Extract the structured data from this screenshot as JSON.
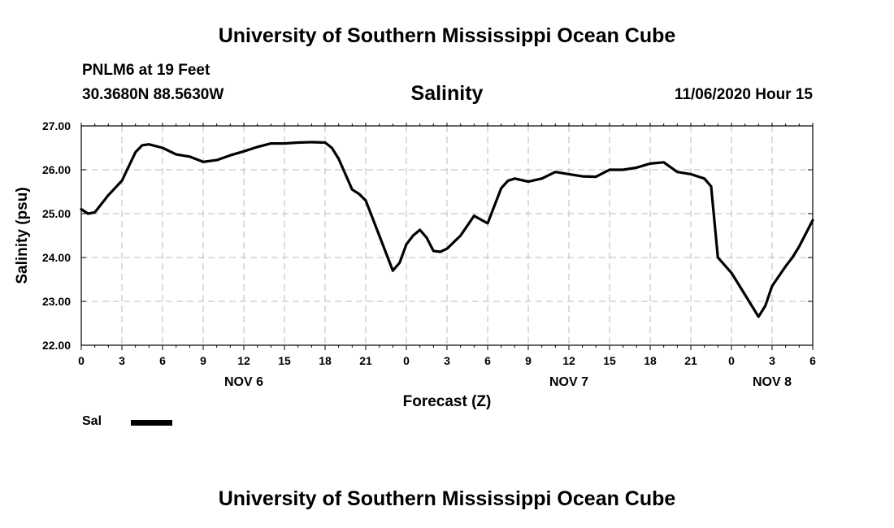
{
  "header": {
    "top_title": "University of Southern Mississippi Ocean Cube",
    "station": "PNLM6 at 19 Feet",
    "coords": "30.3680N 88.5630W",
    "issued": "11/06/2020 Hour 15"
  },
  "footer": {
    "bottom_title": "University of Southern Mississippi Ocean Cube"
  },
  "chart_data": {
    "type": "line",
    "title": "Salinity",
    "xlabel": "Forecast (Z)",
    "ylabel": "Salinity (psu)",
    "xlim": [
      0,
      54
    ],
    "ylim": [
      22.0,
      27.0
    ],
    "grid": true,
    "y_ticks": [
      "22.00",
      "23.00",
      "24.00",
      "25.00",
      "26.00",
      "27.00"
    ],
    "x_ticks": [
      "0",
      "3",
      "6",
      "9",
      "12",
      "15",
      "18",
      "21",
      "0",
      "3",
      "6",
      "9",
      "12",
      "15",
      "18",
      "21",
      "0",
      "3",
      "6"
    ],
    "date_labels": [
      {
        "label": "NOV 6",
        "at": 12
      },
      {
        "label": "NOV 7",
        "at": 36
      },
      {
        "label": "NOV 8",
        "at": 51
      }
    ],
    "line_color": "#000000",
    "series": [
      {
        "name": "Sal",
        "x": [
          0,
          0.5,
          1,
          2,
          3,
          4,
          4.5,
          5,
          6,
          7,
          8,
          9,
          10,
          11,
          12,
          13,
          14,
          15,
          16,
          17,
          18,
          18.5,
          19,
          20,
          20.5,
          21,
          22,
          23,
          23.5,
          24,
          24.5,
          25,
          25.5,
          26,
          26.5,
          27,
          28,
          29,
          30,
          31,
          31.5,
          32,
          33,
          34,
          35,
          36,
          37,
          38,
          39,
          40,
          41,
          42,
          43,
          44,
          45,
          45.5,
          46,
          46.5,
          47,
          48,
          49,
          50,
          50.5,
          51,
          52,
          52.5,
          53,
          54
        ],
        "values": [
          25.1,
          25.0,
          25.03,
          25.42,
          25.75,
          26.4,
          26.56,
          26.58,
          26.5,
          26.35,
          26.3,
          26.18,
          26.22,
          26.33,
          26.42,
          26.52,
          26.6,
          26.6,
          26.62,
          26.63,
          26.62,
          26.5,
          26.25,
          25.55,
          25.45,
          25.3,
          24.5,
          23.7,
          23.88,
          24.3,
          24.5,
          24.63,
          24.45,
          24.15,
          24.13,
          24.2,
          24.5,
          24.95,
          24.78,
          25.58,
          25.75,
          25.8,
          25.73,
          25.8,
          25.95,
          25.9,
          25.85,
          25.84,
          26.0,
          26.0,
          26.05,
          26.14,
          26.17,
          25.95,
          25.9,
          25.85,
          25.8,
          25.62,
          24.0,
          23.65,
          23.15,
          22.65,
          22.9,
          23.35,
          23.8,
          24.0,
          24.25,
          24.85
        ]
      }
    ]
  },
  "legend": {
    "entries": [
      {
        "label": "Sal",
        "color": "#000000"
      }
    ]
  }
}
